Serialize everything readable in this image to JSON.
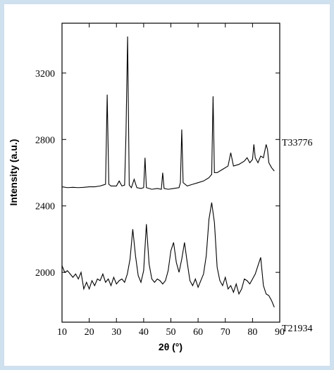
{
  "chart_data": {
    "type": "line",
    "xlabel": "2θ (°)",
    "ylabel": "Intensity (a.u.)",
    "xlim": [
      10,
      90
    ],
    "xticks": [
      10,
      20,
      30,
      40,
      50,
      60,
      70,
      80,
      90
    ],
    "ylim": [
      1700,
      3500
    ],
    "yticks": [
      2000,
      2400,
      2800,
      3200
    ],
    "series": [
      {
        "name": "T33776",
        "color": "#000000",
        "x": [
          10,
          12,
          14,
          16,
          18,
          20,
          22,
          24,
          25,
          26,
          26.6,
          27.2,
          28,
          30,
          31,
          32,
          33,
          33.5,
          34.1,
          34.7,
          35.5,
          36.5,
          37.5,
          39,
          40,
          40.5,
          41,
          43,
          45,
          46.5,
          47,
          47.5,
          49,
          51,
          53,
          53.5,
          54,
          54.5,
          56,
          58,
          60,
          62,
          64,
          65,
          65.5,
          66,
          67,
          69,
          71,
          72,
          73,
          75,
          77,
          78,
          79,
          80,
          80.5,
          81,
          82,
          83,
          84,
          85,
          85.5,
          86,
          87,
          88
        ],
        "values": [
          2515,
          2510,
          2512,
          2510,
          2512,
          2515,
          2515,
          2520,
          2525,
          2530,
          3070,
          2530,
          2520,
          2520,
          2550,
          2520,
          2525,
          2830,
          3420,
          2525,
          2510,
          2560,
          2510,
          2505,
          2510,
          2690,
          2510,
          2500,
          2505,
          2500,
          2600,
          2505,
          2500,
          2505,
          2510,
          2540,
          2860,
          2540,
          2520,
          2530,
          2540,
          2550,
          2570,
          2590,
          3060,
          2600,
          2600,
          2620,
          2640,
          2720,
          2640,
          2650,
          2670,
          2690,
          2660,
          2680,
          2770,
          2690,
          2660,
          2700,
          2690,
          2770,
          2740,
          2660,
          2630,
          2610
        ]
      },
      {
        "name": "T21934",
        "color": "#000000",
        "x": [
          10,
          11,
          12,
          13,
          14,
          15,
          16,
          17,
          18,
          19,
          20,
          21,
          22,
          23,
          24,
          25,
          26,
          27,
          28,
          29,
          30,
          31,
          32,
          33,
          34,
          35,
          36,
          37,
          38,
          39,
          40,
          41,
          42,
          43,
          44,
          45,
          46,
          47,
          48,
          49,
          50,
          51,
          52,
          53,
          54,
          55,
          56,
          57,
          58,
          59,
          60,
          61,
          62,
          63,
          64,
          65,
          66,
          67,
          68,
          69,
          70,
          71,
          72,
          73,
          74,
          75,
          76,
          77,
          78,
          79,
          80,
          81,
          82,
          83,
          84,
          85,
          86,
          87,
          88
        ],
        "values": [
          2040,
          2000,
          2010,
          1990,
          1970,
          1990,
          1960,
          2000,
          1900,
          1940,
          1900,
          1950,
          1920,
          1960,
          1950,
          1990,
          1940,
          1960,
          1920,
          1970,
          1930,
          1950,
          1960,
          1940,
          1990,
          2080,
          2260,
          2100,
          1980,
          1940,
          2010,
          2290,
          2050,
          1960,
          1940,
          1960,
          1950,
          1930,
          1950,
          2010,
          2130,
          2180,
          2060,
          2000,
          2080,
          2180,
          2060,
          1950,
          1920,
          1960,
          1910,
          1950,
          1990,
          2100,
          2320,
          2420,
          2300,
          2030,
          1950,
          1920,
          1970,
          1900,
          1920,
          1880,
          1930,
          1870,
          1900,
          1960,
          1950,
          1930,
          1960,
          1990,
          2040,
          2090,
          1920,
          1870,
          1860,
          1830,
          1790
        ]
      }
    ]
  }
}
